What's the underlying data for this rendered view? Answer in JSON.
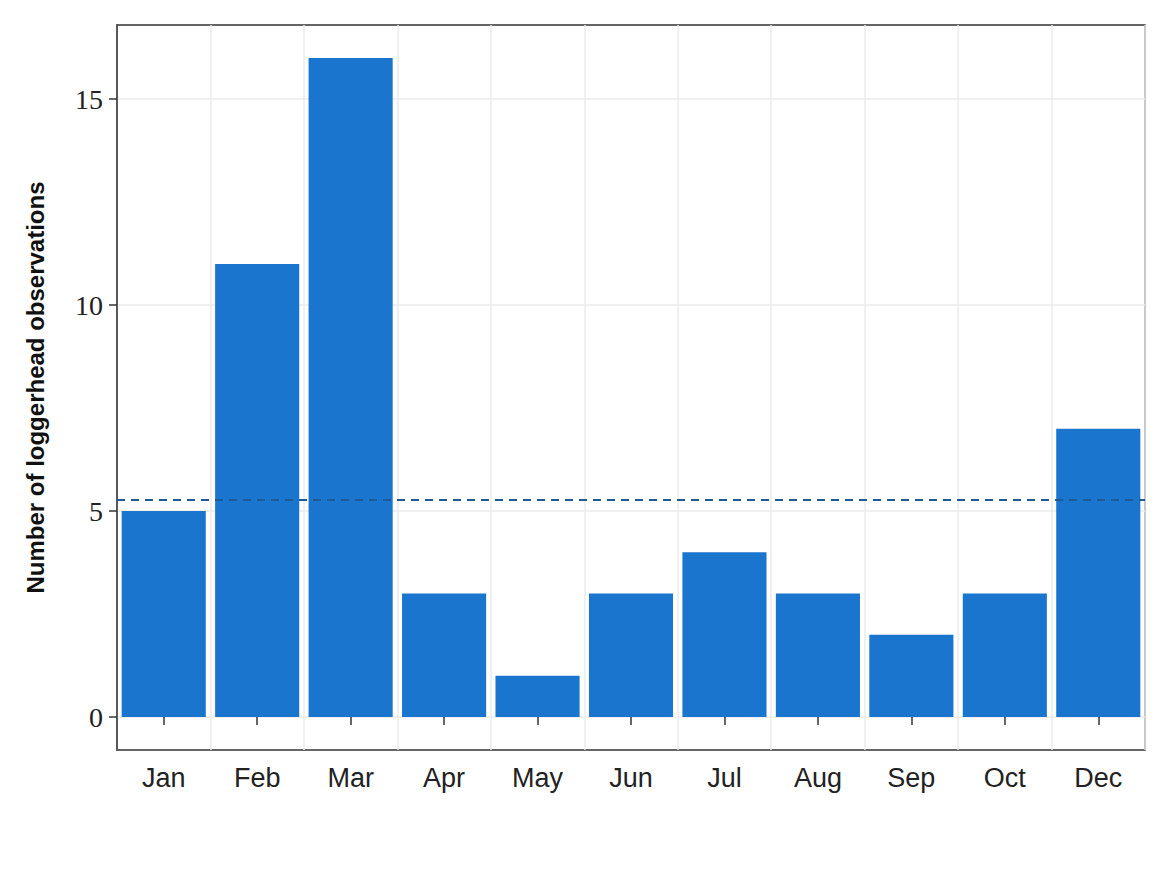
{
  "chart_data": {
    "type": "bar",
    "y_label": "Number of loggerhead observations",
    "categories": [
      "Jan",
      "Feb",
      "Mar",
      "Apr",
      "May",
      "Jun",
      "Jul",
      "Aug",
      "Sep",
      "Oct",
      "Dec"
    ],
    "values": [
      5,
      11,
      16,
      3,
      1,
      3,
      4,
      3,
      2,
      3,
      7
    ],
    "color": "#1a75cf",
    "reference_line": 5.27,
    "ylim": [
      -0.8,
      16.8
    ],
    "yticks": [
      0,
      5,
      10,
      15
    ],
    "grid": true
  }
}
